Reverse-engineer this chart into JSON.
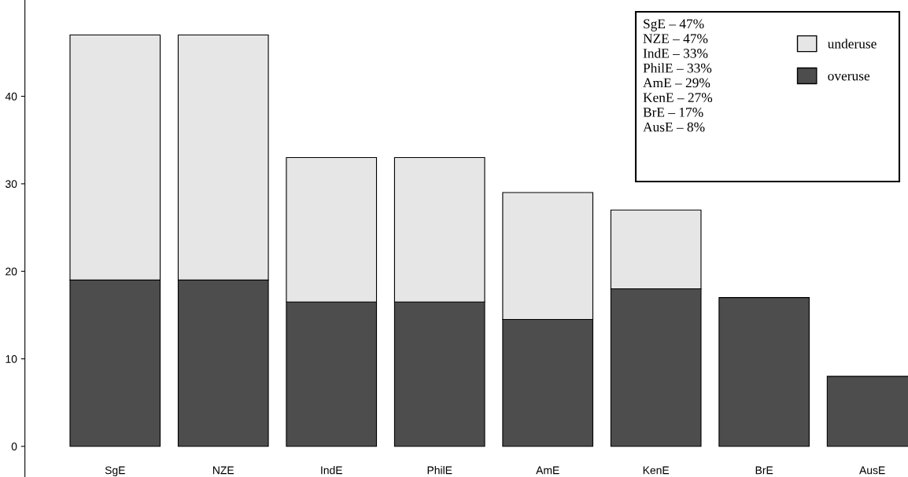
{
  "chart_data": {
    "type": "bar",
    "stacked": true,
    "categories": [
      "SgE",
      "NZE",
      "IndE",
      "PhilE",
      "AmE",
      "KenE",
      "BrE",
      "AusE"
    ],
    "series": [
      {
        "name": "overuse",
        "color": "#4d4d4d",
        "values": [
          19,
          19,
          16.5,
          16.5,
          14.5,
          18,
          17,
          8
        ]
      },
      {
        "name": "underuse",
        "color": "#e6e6e6",
        "values": [
          28,
          28,
          16.5,
          16.5,
          14.5,
          9,
          null,
          null
        ]
      }
    ],
    "ylim": [
      -3.5,
      51
    ],
    "yticks": [
      0,
      10,
      20,
      30,
      40
    ],
    "annotations": [
      "SgE – 47%",
      "NZE – 47%",
      "IndE – 33%",
      "PhilE – 33%",
      "AmE – 29%",
      "KenE – 27%",
      "BrE – 17%",
      "AusE – 8%"
    ],
    "legend": "top right",
    "grid": false
  }
}
